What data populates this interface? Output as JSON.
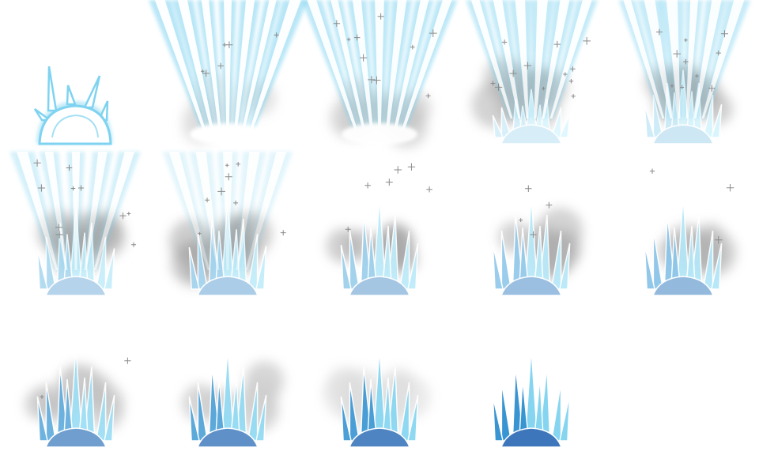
{
  "sprite_sheet": {
    "columns": 5,
    "rows": 3,
    "frame_count": 14,
    "colors": {
      "ice_light": "#e8fbff",
      "ice_mid": "#7fd3f0",
      "ice_deep": "#2f8fd0",
      "ice_dark": "#1f5fae",
      "beam": "#bfeeff",
      "smoke": "#9a9a9a"
    },
    "frames": [
      {
        "id": 1,
        "stage": "dome",
        "beams": 0,
        "beam_opacity": 0.0,
        "smoke": 0.0,
        "crystals": 0.0,
        "blue": 0.0,
        "sparkles": 0
      },
      {
        "id": 2,
        "stage": "burst",
        "beams": 7,
        "beam_opacity": 1.0,
        "smoke": 0.35,
        "crystals": 0.0,
        "blue": 0.0,
        "sparkles": 6
      },
      {
        "id": 3,
        "stage": "burst",
        "beams": 7,
        "beam_opacity": 0.95,
        "smoke": 0.6,
        "crystals": 0.0,
        "blue": 0.0,
        "sparkles": 10
      },
      {
        "id": 4,
        "stage": "crystals",
        "beams": 6,
        "beam_opacity": 0.85,
        "smoke": 0.8,
        "crystals": 0.55,
        "blue": 0.1,
        "sparkles": 12
      },
      {
        "id": 5,
        "stage": "crystals",
        "beams": 6,
        "beam_opacity": 0.8,
        "smoke": 0.85,
        "crystals": 0.75,
        "blue": 0.15,
        "sparkles": 10
      },
      {
        "id": 6,
        "stage": "crystals",
        "beams": 5,
        "beam_opacity": 0.6,
        "smoke": 0.9,
        "crystals": 0.9,
        "blue": 0.3,
        "sparkles": 10
      },
      {
        "id": 7,
        "stage": "crystals",
        "beams": 5,
        "beam_opacity": 0.4,
        "smoke": 0.9,
        "crystals": 0.95,
        "blue": 0.35,
        "sparkles": 8
      },
      {
        "id": 8,
        "stage": "crystals",
        "beams": 0,
        "beam_opacity": 0.0,
        "smoke": 0.85,
        "crystals": 1.0,
        "blue": 0.4,
        "sparkles": 6
      },
      {
        "id": 9,
        "stage": "crystals",
        "beams": 0,
        "beam_opacity": 0.0,
        "smoke": 0.8,
        "crystals": 1.0,
        "blue": 0.45,
        "sparkles": 4
      },
      {
        "id": 10,
        "stage": "crystals",
        "beams": 0,
        "beam_opacity": 0.0,
        "smoke": 0.75,
        "crystals": 1.0,
        "blue": 0.5,
        "sparkles": 3
      },
      {
        "id": 11,
        "stage": "settling",
        "beams": 0,
        "beam_opacity": 0.0,
        "smoke": 0.65,
        "crystals": 1.0,
        "blue": 0.7,
        "sparkles": 2
      },
      {
        "id": 12,
        "stage": "settling",
        "beams": 0,
        "beam_opacity": 0.0,
        "smoke": 0.5,
        "crystals": 1.0,
        "blue": 0.8,
        "sparkles": 0
      },
      {
        "id": 13,
        "stage": "settling",
        "beams": 0,
        "beam_opacity": 0.0,
        "smoke": 0.35,
        "crystals": 1.0,
        "blue": 0.9,
        "sparkles": 0
      },
      {
        "id": 14,
        "stage": "frozen",
        "beams": 0,
        "beam_opacity": 0.0,
        "smoke": 0.0,
        "crystals": 1.0,
        "blue": 1.0,
        "sparkles": 0
      }
    ]
  }
}
